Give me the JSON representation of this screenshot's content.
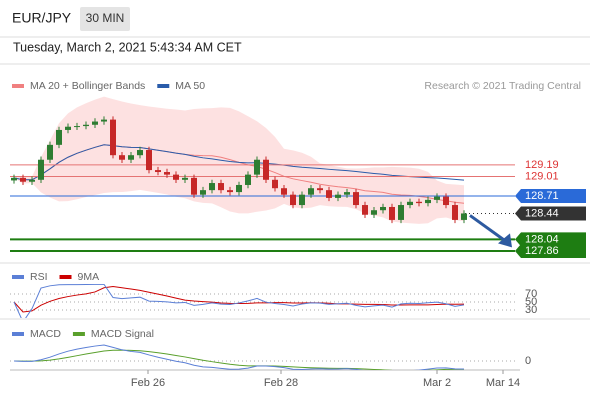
{
  "header": {
    "symbol": "EUR/JPY",
    "interval": "30 MIN",
    "timestamp": "Tuesday, March 2, 2021 5:43:34 AM CET"
  },
  "chart_data": [
    {
      "type": "candlestick",
      "legend": [
        "MA 20 + Bollinger Bands",
        "MA 50"
      ],
      "legend_colors": [
        "#f08080",
        "#2a5caa"
      ],
      "credit": "Research © 2021 Trading Central",
      "x_labels": [
        "Feb 26",
        "Feb 28",
        "Mar 2",
        "Mar 14"
      ],
      "ylim": [
        127.69,
        130.27
      ],
      "open": [
        128.95,
        128.99,
        128.93,
        128.96,
        129.27,
        129.5,
        129.73,
        129.78,
        129.79,
        129.81,
        129.86,
        129.89,
        129.34,
        129.27,
        129.34,
        129.42,
        129.11,
        129.08,
        129.04,
        128.96,
        128.99,
        128.73,
        128.8,
        128.91,
        128.8,
        128.77,
        128.88,
        129.04,
        129.27,
        128.96,
        128.83,
        128.73,
        128.57,
        128.73,
        128.83,
        128.8,
        128.68,
        128.73,
        128.77,
        128.57,
        128.42,
        128.49,
        128.54,
        128.34,
        128.57,
        128.62,
        128.6,
        128.65,
        128.7,
        128.57,
        128.34
      ],
      "high": [
        129.04,
        129.04,
        129.01,
        129.32,
        129.55,
        129.78,
        129.83,
        129.84,
        129.86,
        129.91,
        129.94,
        129.94,
        129.39,
        129.39,
        129.47,
        129.47,
        129.16,
        129.13,
        129.09,
        129.04,
        129.04,
        128.85,
        128.96,
        128.96,
        128.85,
        128.93,
        129.09,
        129.32,
        129.32,
        129.01,
        128.88,
        128.78,
        128.78,
        128.88,
        128.88,
        128.85,
        128.78,
        128.82,
        128.82,
        128.62,
        128.54,
        128.59,
        128.59,
        128.62,
        128.67,
        128.67,
        128.7,
        128.75,
        128.75,
        128.62,
        128.49
      ],
      "low": [
        128.9,
        128.88,
        128.88,
        128.91,
        129.22,
        129.45,
        129.68,
        129.73,
        129.74,
        129.76,
        129.81,
        129.29,
        129.22,
        129.22,
        129.29,
        129.06,
        129.03,
        128.99,
        128.91,
        128.91,
        128.68,
        128.68,
        128.75,
        128.75,
        128.72,
        128.72,
        128.83,
        128.99,
        128.91,
        128.78,
        128.68,
        128.52,
        128.52,
        128.68,
        128.75,
        128.63,
        128.63,
        128.68,
        128.52,
        128.37,
        128.37,
        128.44,
        128.29,
        128.29,
        128.52,
        128.55,
        128.55,
        128.6,
        128.52,
        128.29,
        128.29
      ],
      "close": [
        128.99,
        128.93,
        128.96,
        129.27,
        129.5,
        129.73,
        129.78,
        129.79,
        129.81,
        129.86,
        129.89,
        129.34,
        129.27,
        129.34,
        129.42,
        129.11,
        129.08,
        129.04,
        128.96,
        128.99,
        128.73,
        128.8,
        128.91,
        128.8,
        128.77,
        128.88,
        129.04,
        129.27,
        128.96,
        128.83,
        128.73,
        128.57,
        128.73,
        128.83,
        128.8,
        128.68,
        128.73,
        128.77,
        128.57,
        128.42,
        128.49,
        128.54,
        128.34,
        128.57,
        128.62,
        128.6,
        128.65,
        128.7,
        128.57,
        128.34,
        128.44
      ],
      "up_color": "#2e7d32",
      "down_color": "#c62828",
      "levels": [
        {
          "value": 129.19,
          "color": "#e57373"
        },
        {
          "value": 129.01,
          "color": "#e57373"
        },
        {
          "value": 128.71,
          "color": "#2a6ad8"
        },
        {
          "value": 128.44,
          "color": "#333333"
        },
        {
          "value": 128.04,
          "color": "#1e7d12"
        },
        {
          "value": 127.86,
          "color": "#1e7d12"
        }
      ]
    },
    {
      "type": "rsi",
      "legend": [
        "RSI",
        "9MA"
      ],
      "legend_colors": [
        "#5b7fd6",
        "#cc0000"
      ],
      "ylim": [
        10,
        90
      ],
      "yticks": [
        70,
        50,
        30
      ]
    },
    {
      "type": "macd",
      "legend": [
        "MACD",
        "MACD Signal"
      ],
      "legend_colors": [
        "#5b7fd6",
        "#5aa02c"
      ],
      "ylim": [
        -0.1,
        0.3
      ],
      "yticks": [
        0
      ]
    }
  ]
}
